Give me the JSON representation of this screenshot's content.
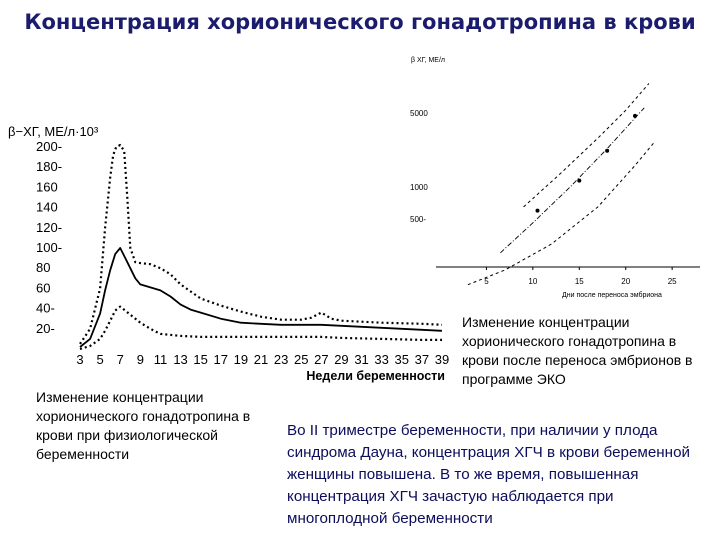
{
  "page": {
    "title": "Концентрация хорионического гонадотропина в крови",
    "caption_left": "Изменение концентрации хорионического гонадотропина в крови при физиологической беременности",
    "caption_right": "Изменение концентрации хорионического гонадотропина в крови после переноса эмбрионов в программе ЭКО",
    "paragraph": "Во II триместре беременности, при наличии у плода синдрома Дауна, концентрация ХГЧ в крови беременной женщины повышена. В то же время, повышенная концентрация ХГЧ зачастую наблюдается при многоплодной беременности"
  },
  "chart_data": [
    {
      "type": "line",
      "ylabel": "β−ХГ, МЕ/л·10³",
      "xlabel": "Недели беременности",
      "xlim": [
        3,
        39
      ],
      "ylim": [
        0,
        200
      ],
      "xticks": [
        3,
        5,
        7,
        9,
        11,
        13,
        15,
        17,
        19,
        21,
        23,
        25,
        27,
        29,
        31,
        33,
        35,
        37,
        39
      ],
      "ytick_labels": [
        "200-",
        "180-",
        "160",
        "140",
        "120-",
        "100-",
        "80",
        "60",
        "40-",
        "20-"
      ],
      "ytick_values": [
        200,
        180,
        160,
        140,
        120,
        100,
        80,
        60,
        40,
        20
      ],
      "grid": false,
      "series": [
        {
          "style": "dotted-upper",
          "x": [
            3,
            4,
            5,
            5.5,
            6,
            6.3,
            6.6,
            7,
            7.4,
            7.7,
            8,
            8.5,
            9,
            10,
            11,
            12,
            13,
            15,
            17,
            19,
            21,
            23,
            25,
            26,
            27,
            28,
            29,
            33,
            37,
            39
          ],
          "y": [
            5,
            20,
            60,
            120,
            170,
            192,
            200,
            202,
            196,
            150,
            100,
            86,
            85,
            84,
            80,
            74,
            64,
            50,
            43,
            37,
            32,
            29,
            29,
            31,
            36,
            30,
            28,
            26,
            25,
            24
          ]
        },
        {
          "style": "solid-median",
          "x": [
            3,
            4,
            5,
            5.5,
            6,
            6.5,
            7,
            7.5,
            8,
            8.5,
            9,
            10,
            11,
            12,
            13,
            14,
            15,
            17,
            19,
            21,
            23,
            25,
            27,
            29,
            33,
            37,
            39
          ],
          "y": [
            2,
            10,
            35,
            58,
            78,
            94,
            100,
            90,
            80,
            70,
            64,
            61,
            58,
            52,
            44,
            39,
            36,
            30,
            26,
            25,
            24,
            24,
            24,
            23,
            21,
            19,
            18
          ]
        },
        {
          "style": "dotted-lower",
          "x": [
            3,
            4,
            5,
            5.5,
            6,
            6.5,
            7,
            7.5,
            8,
            9,
            10,
            11,
            13,
            15,
            17,
            19,
            21,
            23,
            25,
            27,
            29,
            33,
            37,
            39
          ],
          "y": [
            0,
            3,
            10,
            18,
            28,
            38,
            42,
            38,
            34,
            26,
            20,
            15,
            13,
            12,
            12,
            12,
            12,
            12,
            12,
            12,
            11,
            10,
            9,
            9
          ]
        }
      ]
    },
    {
      "type": "scatter",
      "ylabel": "β ХГ, МЕ/л",
      "xlabel": "Дни после переноса эмбриона",
      "xlim": [
        0,
        28
      ],
      "yscale": "log",
      "xticks": [
        5,
        10,
        15,
        20,
        25
      ],
      "ytick_labels": [
        "5000",
        "1000",
        "500-"
      ],
      "ytick_values": [
        5000,
        1000,
        500
      ],
      "grid": false,
      "points": [
        {
          "x": 10.5,
          "y": 600
        },
        {
          "x": 15,
          "y": 1150
        },
        {
          "x": 18,
          "y": 2200
        },
        {
          "x": 21,
          "y": 4700
        }
      ],
      "series": [
        {
          "style": "dashed-upper",
          "x": [
            9,
            13,
            17,
            20,
            22.5
          ],
          "y": [
            650,
            1350,
            2900,
            5300,
            9500
          ]
        },
        {
          "style": "dashed-median",
          "x": [
            6.5,
            10,
            14,
            18,
            22
          ],
          "y": [
            240,
            460,
            1000,
            2300,
            5600
          ]
        },
        {
          "style": "dashed-lower",
          "x": [
            3,
            7,
            12,
            17,
            21,
            23
          ],
          "y": [
            120,
            165,
            290,
            650,
            1600,
            2600
          ]
        }
      ]
    }
  ]
}
